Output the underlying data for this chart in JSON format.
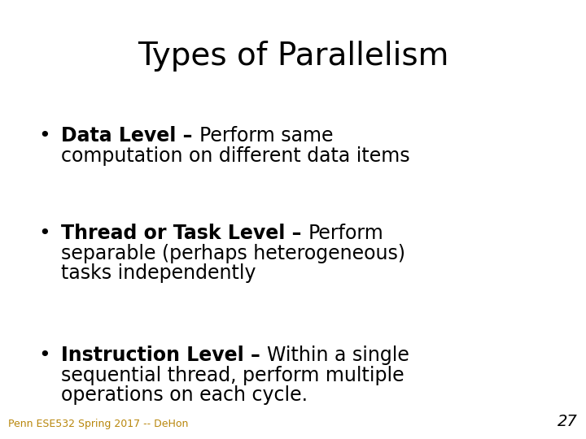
{
  "title": "Types of Parallelism",
  "title_fontsize": 28,
  "title_color": "#000000",
  "background_color": "#ffffff",
  "bullet_blocks": [
    {
      "bold_text": "Data Level",
      "dash": " – ",
      "lines": [
        "Perform same",
        "computation on different data items"
      ]
    },
    {
      "bold_text": "Thread or Task Level",
      "dash": " – ",
      "lines": [
        "Perform",
        "separable (perhaps heterogeneous)",
        "tasks independently"
      ]
    },
    {
      "bold_text": "Instruction Level",
      "dash": " – ",
      "lines": [
        "Within a single",
        "sequential thread, perform multiple",
        "operations on each cycle."
      ]
    }
  ],
  "bullet_fontsize": 17,
  "footer_text": "Penn ESE532 Spring 2017 -- DeHon",
  "footer_color": "#b8860b",
  "footer_fontsize": 9,
  "page_number": "27",
  "page_number_fontsize": 14,
  "page_number_color": "#000000",
  "text_color": "#000000"
}
